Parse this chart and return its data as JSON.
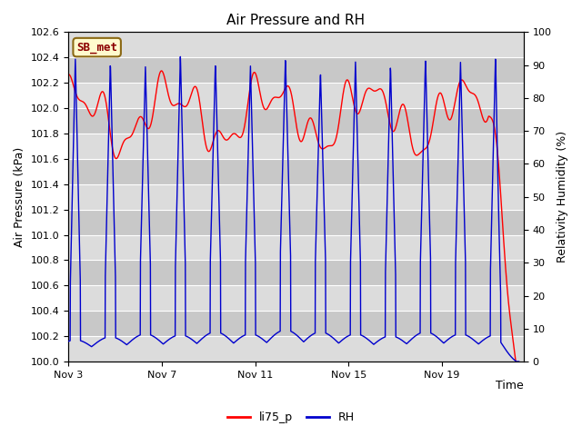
{
  "title": "Air Pressure and RH",
  "xlabel": "Time",
  "ylabel_left": "Air Pressure (kPa)",
  "ylabel_right": "Relativity Humidity (%)",
  "ylim_left": [
    100.0,
    102.6
  ],
  "ylim_right": [
    0,
    100
  ],
  "yticks_left": [
    100.0,
    100.2,
    100.4,
    100.6,
    100.8,
    101.0,
    101.2,
    101.4,
    101.6,
    101.8,
    102.0,
    102.2,
    102.4,
    102.6
  ],
  "yticks_right": [
    0,
    10,
    20,
    30,
    40,
    50,
    60,
    70,
    80,
    90,
    100
  ],
  "xtick_labels": [
    "Nov 3",
    "Nov 7",
    "Nov 11",
    "Nov 15",
    "Nov 19"
  ],
  "xtick_positions": [
    0,
    4,
    8,
    12,
    16
  ],
  "xlim": [
    0,
    19.5
  ],
  "annotation_text": "SB_met",
  "annotation_color": "#8B0000",
  "annotation_bg": "#FFFACD",
  "annotation_edge": "#8B6914",
  "line_color_pressure": "#FF0000",
  "line_color_rh": "#0000CD",
  "legend_labels": [
    "li75_p",
    "RH"
  ],
  "bg_color": "#FFFFFF",
  "plot_bg_light": "#DCDCDC",
  "plot_bg_dark": "#C8C8C8",
  "grid_color": "#FFFFFF",
  "title_fontsize": 11,
  "axis_fontsize": 9,
  "tick_fontsize": 8
}
